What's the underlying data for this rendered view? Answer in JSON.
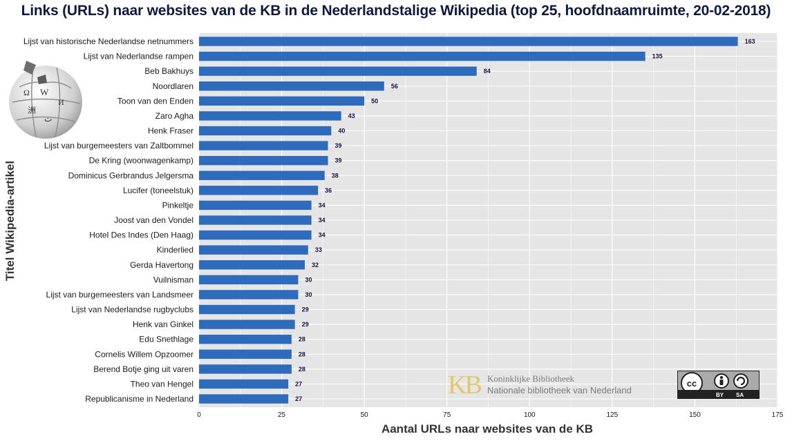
{
  "chart_data": {
    "type": "bar",
    "orientation": "horizontal",
    "title": "Links (URLs) naar websites van de KB in de Nederlandstalige Wikipedia (top 25, hoofdnaamruimte, 20-02-2018)",
    "xlabel": "Aantal URLs naar websites van de KB",
    "ylabel": "Titel Wikipedia-artikel",
    "xlim": [
      0,
      175
    ],
    "xticks": [
      0,
      25,
      50,
      75,
      100,
      125,
      150,
      175
    ],
    "grid": true,
    "bar_color": "#2e6bbd",
    "background_color": "#e5e5e5",
    "categories": [
      "Lijst van historische Nederlandse netnummers",
      "Lijst van Nederlandse rampen",
      "Beb Bakhuys",
      "Noordlaren",
      "Toon van den Enden",
      "Zaro Agha",
      "Henk Fraser",
      "Lijst van burgemeesters van Zaltbommel",
      "De Kring (woonwagenkamp)",
      "Dominicus Gerbrandus Jelgersma",
      "Lucifer (toneelstuk)",
      "Pinkeltje",
      "Joost van den Vondel",
      "Hotel Des Indes (Den Haag)",
      "Kinderlied",
      "Gerda Havertong",
      "Vuilnisman",
      "Lijst van burgemeesters van Landsmeer",
      "Lijst van Nederlandse rugbyclubs",
      "Henk van Ginkel",
      "Edu Snethlage",
      "Cornelis Willem Opzoomer",
      "Berend Botje ging uit varen",
      "Theo van Hengel",
      "Republicanisme in Nederland"
    ],
    "values": [
      163,
      135,
      84,
      56,
      50,
      43,
      40,
      39,
      39,
      38,
      36,
      34,
      34,
      34,
      33,
      32,
      30,
      30,
      29,
      29,
      28,
      28,
      28,
      27,
      27
    ]
  },
  "logos": {
    "kb_mark": "KB",
    "kb_name": "Koninklijke Bibliotheek",
    "kb_subtitle": "Nationale bibliotheek van Nederland",
    "license_by": "BY",
    "license_sa": "SA",
    "wikipedia_globe_icon": "wikipedia-globe-icon",
    "cc_icon": "cc-by-sa-icon"
  }
}
